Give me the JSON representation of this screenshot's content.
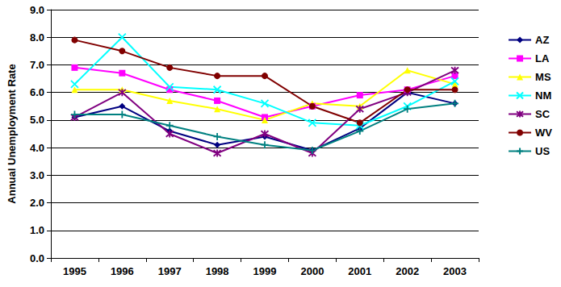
{
  "chart_data": {
    "type": "line",
    "y_label": "Annual Unemployment Rate",
    "categories": [
      "1995",
      "1996",
      "1997",
      "1998",
      "1999",
      "2000",
      "2001",
      "2002",
      "2003"
    ],
    "series": [
      {
        "name": "AZ",
        "color": "#000080",
        "marker": "diamond",
        "values": [
          5.1,
          5.5,
          4.6,
          4.1,
          4.4,
          3.9,
          4.7,
          6.0,
          5.6
        ]
      },
      {
        "name": "LA",
        "color": "#ff00ff",
        "marker": "square",
        "values": [
          6.9,
          6.7,
          6.1,
          5.7,
          5.1,
          5.5,
          5.9,
          6.1,
          6.6
        ]
      },
      {
        "name": "MS",
        "color": "#ffff00",
        "marker": "triangle",
        "values": [
          6.1,
          6.1,
          5.7,
          5.4,
          5.0,
          5.6,
          5.5,
          6.8,
          6.3
        ]
      },
      {
        "name": "NM",
        "color": "#00ffff",
        "marker": "x",
        "values": [
          6.3,
          8.0,
          6.2,
          6.1,
          5.6,
          4.9,
          4.8,
          5.5,
          6.4
        ]
      },
      {
        "name": "SC",
        "color": "#800080",
        "marker": "star",
        "values": [
          5.1,
          6.0,
          4.5,
          3.8,
          4.5,
          3.8,
          5.4,
          6.0,
          6.8
        ]
      },
      {
        "name": "WV",
        "color": "#800000",
        "marker": "circle",
        "values": [
          7.9,
          7.5,
          6.9,
          6.6,
          6.6,
          5.5,
          4.9,
          6.1,
          6.1
        ]
      },
      {
        "name": "US",
        "color": "#008080",
        "marker": "plus",
        "values": [
          5.2,
          5.2,
          4.8,
          4.4,
          4.1,
          3.9,
          4.6,
          5.4,
          5.6
        ]
      }
    ],
    "ylim": [
      0,
      9
    ],
    "yticks": [
      {
        "value": 0,
        "label": "0.0"
      },
      {
        "value": 1,
        "label": "1.0"
      },
      {
        "value": 2,
        "label": "2.0"
      },
      {
        "value": 3,
        "label": "3.0"
      },
      {
        "value": 4,
        "label": "4.0"
      },
      {
        "value": 5,
        "label": "5.0"
      },
      {
        "value": 6,
        "label": "6.0"
      },
      {
        "value": 7,
        "label": "7.0"
      },
      {
        "value": 8,
        "label": "8.0"
      },
      {
        "value": 9,
        "label": "9.0"
      }
    ],
    "grid": true,
    "legend": "right"
  }
}
